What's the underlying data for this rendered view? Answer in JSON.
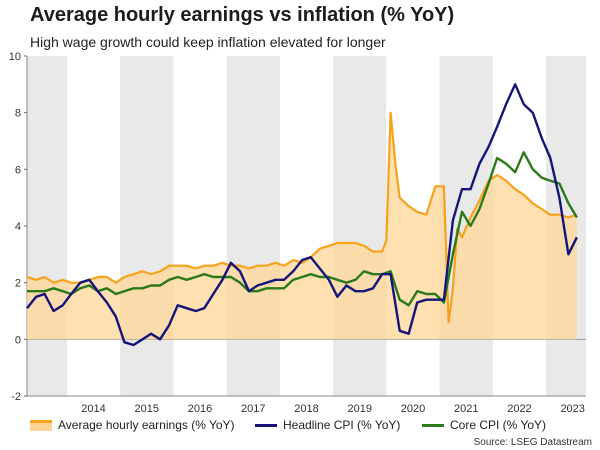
{
  "header": {
    "title": "Average hourly earnings vs inflation (% YoY)",
    "subtitle": "High wage growth could keep inflation elevated for longer"
  },
  "legend": {
    "earnings": "Average hourly earnings (% YoY)",
    "headline": "Headline CPI (% YoY)",
    "core": "Core CPI (% YoY)"
  },
  "source": "Source: LSEG Datastream",
  "colors": {
    "earnings_line": "#f7a21b",
    "earnings_fill": "#ffd595",
    "headline": "#14147a",
    "core": "#2a7a1a",
    "band": "#e9e9e9"
  },
  "chart_data": {
    "type": "line",
    "title": "Average hourly earnings vs inflation (% YoY)",
    "subtitle": "High wage growth could keep inflation elevated for longer",
    "xlabel": "",
    "ylabel": "",
    "ylim": [
      -2,
      10
    ],
    "yticks": [
      "-2",
      "0",
      "2",
      "4",
      "6",
      "8",
      "10"
    ],
    "xlim": [
      2013.25,
      2023.75
    ],
    "year_labels": [
      "2014",
      "2015",
      "2016",
      "2017",
      "2018",
      "2019",
      "2020",
      "2021",
      "2022",
      "2023"
    ],
    "shaded_years": "alternate year bands",
    "legend_position": "bottom",
    "series": [
      {
        "name": "Average hourly earnings (% YoY)",
        "style": "area",
        "x": [
          2013.25,
          2013.42,
          2013.58,
          2013.75,
          2013.92,
          2014.08,
          2014.25,
          2014.42,
          2014.58,
          2014.75,
          2014.92,
          2015.08,
          2015.25,
          2015.42,
          2015.58,
          2015.75,
          2015.92,
          2016.08,
          2016.25,
          2016.42,
          2016.58,
          2016.75,
          2016.92,
          2017.08,
          2017.25,
          2017.42,
          2017.58,
          2017.75,
          2017.92,
          2018.08,
          2018.25,
          2018.42,
          2018.58,
          2018.75,
          2018.92,
          2019.08,
          2019.25,
          2019.42,
          2019.58,
          2019.75,
          2019.92,
          2020.0,
          2020.08,
          2020.17,
          2020.25,
          2020.42,
          2020.58,
          2020.75,
          2020.92,
          2021.0,
          2021.08,
          2021.17,
          2021.25,
          2021.33,
          2021.42,
          2021.58,
          2021.75,
          2021.92,
          2022.08,
          2022.25,
          2022.42,
          2022.58,
          2022.75,
          2022.92,
          2023.08,
          2023.25,
          2023.42,
          2023.58
        ],
        "values": [
          2.2,
          2.1,
          2.2,
          2.0,
          2.1,
          2.0,
          2.0,
          2.1,
          2.2,
          2.2,
          2.0,
          2.2,
          2.3,
          2.4,
          2.3,
          2.4,
          2.6,
          2.6,
          2.6,
          2.5,
          2.6,
          2.6,
          2.7,
          2.6,
          2.6,
          2.5,
          2.6,
          2.6,
          2.7,
          2.6,
          2.8,
          2.7,
          2.9,
          3.2,
          3.3,
          3.4,
          3.4,
          3.4,
          3.3,
          3.1,
          3.1,
          3.5,
          8.0,
          6.2,
          5.0,
          4.7,
          4.5,
          4.4,
          5.4,
          5.4,
          5.4,
          0.6,
          1.8,
          3.9,
          3.6,
          4.3,
          4.9,
          5.6,
          5.8,
          5.6,
          5.3,
          5.1,
          4.8,
          4.6,
          4.4,
          4.4,
          4.3,
          4.4
        ]
      },
      {
        "name": "Headline CPI (% YoY)",
        "style": "line",
        "x": [
          2013.25,
          2013.42,
          2013.58,
          2013.75,
          2013.92,
          2014.08,
          2014.25,
          2014.42,
          2014.58,
          2014.75,
          2014.92,
          2015.08,
          2015.25,
          2015.42,
          2015.58,
          2015.75,
          2015.92,
          2016.08,
          2016.25,
          2016.42,
          2016.58,
          2016.75,
          2016.92,
          2017.08,
          2017.25,
          2017.42,
          2017.58,
          2017.75,
          2017.92,
          2018.08,
          2018.25,
          2018.42,
          2018.58,
          2018.75,
          2018.92,
          2019.08,
          2019.25,
          2019.42,
          2019.58,
          2019.75,
          2019.92,
          2020.08,
          2020.25,
          2020.42,
          2020.58,
          2020.75,
          2020.92,
          2021.08,
          2021.25,
          2021.42,
          2021.58,
          2021.75,
          2021.92,
          2022.08,
          2022.25,
          2022.42,
          2022.58,
          2022.75,
          2022.92,
          2023.08,
          2023.25,
          2023.42,
          2023.58
        ],
        "values": [
          1.1,
          1.5,
          1.6,
          1.0,
          1.2,
          1.6,
          2.0,
          2.1,
          1.7,
          1.3,
          0.8,
          -0.1,
          -0.2,
          0.0,
          0.2,
          0.0,
          0.5,
          1.2,
          1.1,
          1.0,
          1.1,
          1.6,
          2.1,
          2.7,
          2.4,
          1.7,
          1.9,
          2.0,
          2.1,
          2.1,
          2.4,
          2.8,
          2.9,
          2.5,
          2.1,
          1.5,
          1.9,
          1.7,
          1.7,
          1.8,
          2.3,
          2.3,
          0.3,
          0.2,
          1.3,
          1.4,
          1.4,
          1.4,
          4.2,
          5.3,
          5.3,
          6.2,
          6.8,
          7.5,
          8.3,
          9.0,
          8.3,
          8.0,
          7.1,
          6.4,
          5.0,
          3.0,
          3.6
        ]
      },
      {
        "name": "Core CPI (% YoY)",
        "style": "line",
        "x": [
          2013.25,
          2013.42,
          2013.58,
          2013.75,
          2013.92,
          2014.08,
          2014.25,
          2014.42,
          2014.58,
          2014.75,
          2014.92,
          2015.08,
          2015.25,
          2015.42,
          2015.58,
          2015.75,
          2015.92,
          2016.08,
          2016.25,
          2016.42,
          2016.58,
          2016.75,
          2016.92,
          2017.08,
          2017.25,
          2017.42,
          2017.58,
          2017.75,
          2017.92,
          2018.08,
          2018.25,
          2018.42,
          2018.58,
          2018.75,
          2018.92,
          2019.08,
          2019.25,
          2019.42,
          2019.58,
          2019.75,
          2019.92,
          2020.08,
          2020.25,
          2020.42,
          2020.58,
          2020.75,
          2020.92,
          2021.08,
          2021.25,
          2021.42,
          2021.58,
          2021.75,
          2021.92,
          2022.08,
          2022.25,
          2022.42,
          2022.58,
          2022.75,
          2022.92,
          2023.08,
          2023.25,
          2023.42,
          2023.58
        ],
        "values": [
          1.7,
          1.7,
          1.7,
          1.8,
          1.7,
          1.6,
          1.8,
          1.9,
          1.7,
          1.8,
          1.6,
          1.7,
          1.8,
          1.8,
          1.9,
          1.9,
          2.1,
          2.2,
          2.1,
          2.2,
          2.3,
          2.2,
          2.2,
          2.2,
          2.0,
          1.7,
          1.7,
          1.8,
          1.8,
          1.8,
          2.1,
          2.2,
          2.3,
          2.2,
          2.2,
          2.1,
          2.0,
          2.1,
          2.4,
          2.3,
          2.3,
          2.4,
          1.4,
          1.2,
          1.7,
          1.6,
          1.6,
          1.3,
          3.0,
          4.5,
          4.0,
          4.6,
          5.5,
          6.4,
          6.2,
          5.9,
          6.6,
          6.0,
          5.7,
          5.6,
          5.5,
          4.8,
          4.3
        ]
      }
    ]
  }
}
